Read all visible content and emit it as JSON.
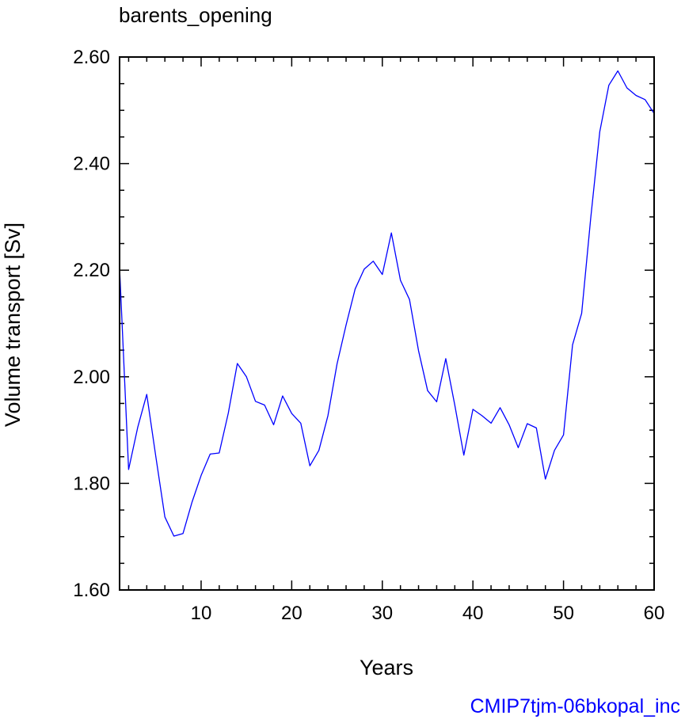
{
  "chart_data": {
    "type": "line",
    "title": "barents_opening",
    "xlabel": "Years",
    "ylabel": "Volume transport [Sv]",
    "xlim": [
      1,
      60
    ],
    "ylim": [
      1.6,
      2.6
    ],
    "x_ticks": [
      10,
      20,
      30,
      40,
      50,
      60
    ],
    "x_tick_labels": [
      "10",
      "20",
      "30",
      "40",
      "50",
      "60"
    ],
    "y_ticks": [
      1.6,
      1.8,
      2.0,
      2.2,
      2.4,
      2.6
    ],
    "y_tick_labels": [
      "1.60",
      "1.80",
      "2.00",
      "2.20",
      "2.40",
      "2.60"
    ],
    "grid": false,
    "line_color": "#0000ff",
    "series": [
      {
        "x": [
          1,
          2,
          3,
          4,
          5,
          6,
          7,
          8,
          9,
          10,
          11,
          12,
          13,
          14,
          15,
          16,
          17,
          18,
          19,
          20,
          21,
          22,
          23,
          24,
          25,
          26,
          27,
          28,
          29,
          30,
          31,
          32,
          33,
          34,
          35,
          36,
          37,
          38,
          39,
          40,
          41,
          42,
          43,
          44,
          45,
          46,
          47,
          48,
          49,
          50,
          51,
          52,
          53,
          54,
          55,
          56,
          57,
          58,
          59,
          60
        ],
        "values": [
          2.205,
          1.826,
          1.905,
          1.967,
          1.85,
          1.737,
          1.701,
          1.706,
          1.765,
          1.815,
          1.855,
          1.857,
          1.932,
          2.025,
          2.0,
          1.954,
          1.947,
          1.91,
          1.964,
          1.931,
          1.913,
          1.833,
          1.862,
          1.927,
          2.024,
          2.097,
          2.165,
          2.202,
          2.217,
          2.192,
          2.27,
          2.181,
          2.145,
          2.049,
          1.974,
          1.953,
          2.034,
          1.947,
          1.853,
          1.939,
          1.927,
          1.913,
          1.942,
          1.91,
          1.867,
          1.912,
          1.904,
          1.808,
          1.862,
          1.891,
          2.06,
          2.119,
          2.297,
          2.46,
          2.547,
          2.574,
          2.542,
          2.528,
          2.52,
          2.494
        ]
      }
    ]
  },
  "footer": {
    "text": "CMIP7tjm-06bkopal_inc",
    "color": "#0000ff"
  }
}
